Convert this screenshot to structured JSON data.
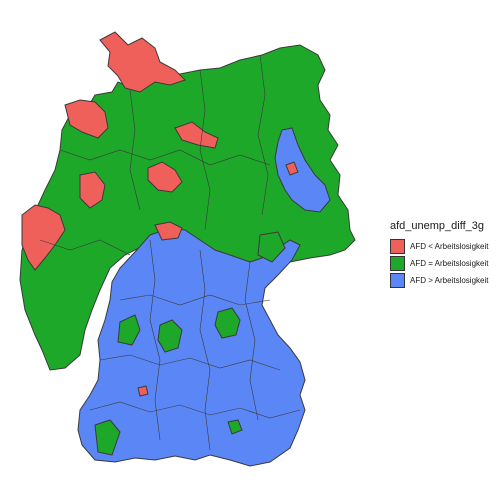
{
  "legend": {
    "title": "afd_unemp_diff_3g",
    "items": [
      {
        "label": "AFD < Arbeitslosigkeit",
        "color": "#f0605a"
      },
      {
        "label": "AFD = Arbeitslosigkeit",
        "color": "#1ea82a"
      },
      {
        "label": "AFD > Arbeitslosigkeit",
        "color": "#5b86f5"
      }
    ]
  },
  "map": {
    "region": "Germany districts",
    "border_color": "#3a3a3a"
  }
}
